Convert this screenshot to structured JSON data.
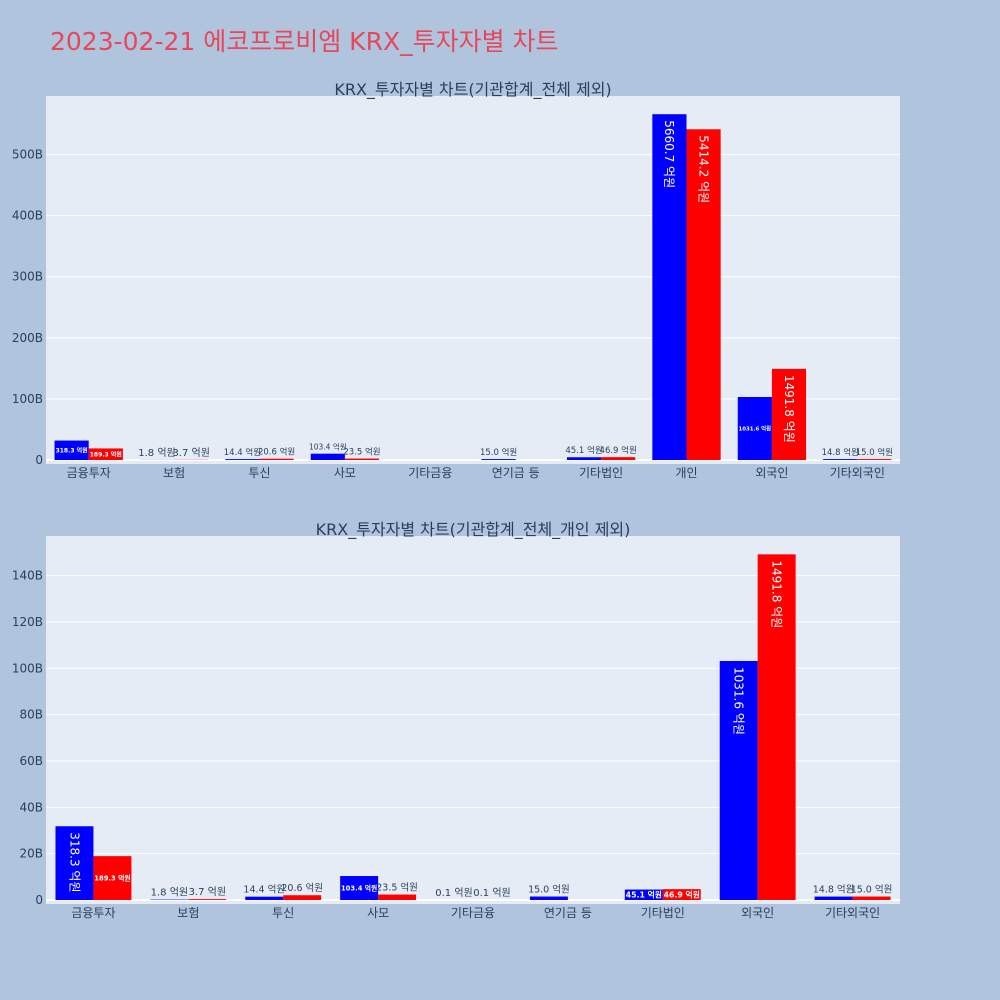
{
  "title": "2023-02-21 에코프로비엠 KRX_투자자별 차트",
  "chart_data": [
    {
      "type": "bar",
      "title": "KRX_투자자별 차트(기관합계_전체 제외)",
      "categories": [
        "금융투자",
        "보험",
        "투신",
        "사모",
        "기타금융",
        "연기금 등",
        "기타법인",
        "개인",
        "외국인",
        "기타외국인"
      ],
      "series": [
        {
          "color": "#0000ff",
          "values": [
            31.83,
            0.18,
            1.44,
            10.34,
            0.01,
            1.5,
            4.51,
            566.07,
            103.16,
            1.48
          ],
          "labels": [
            "318.3 억원",
            "1.8 억원",
            "14.4 억원",
            "103.4 억원",
            "",
            "15.0 억원",
            "45.1 억원",
            "5660.7 억원",
            "1031.6 억원",
            "14.8 억원"
          ]
        },
        {
          "color": "#ff0000",
          "values": [
            18.93,
            0.37,
            2.06,
            2.35,
            0.01,
            0,
            4.69,
            541.42,
            149.18,
            1.5
          ],
          "labels": [
            "189.3 억원",
            "3.7 억원",
            "20.6 억원",
            "23.5 억원",
            "",
            "",
            "46.9 억원",
            "5414.2 억원",
            "1491.8 억원",
            "15.0 억원"
          ]
        }
      ],
      "yticks": [
        0,
        100,
        200,
        300,
        400,
        500
      ],
      "ytick_labels": [
        "0",
        "100B",
        "200B",
        "300B",
        "400B",
        "500B"
      ],
      "ylim": [
        0,
        595.9
      ],
      "grid": true
    },
    {
      "type": "bar",
      "title": "KRX_투자자별 차트(기관합계_전체_개인 제외)",
      "categories": [
        "금융투자",
        "보험",
        "투신",
        "사모",
        "기타금융",
        "연기금 등",
        "기타법인",
        "외국인",
        "기타외국인"
      ],
      "series": [
        {
          "color": "#0000ff",
          "values": [
            31.83,
            0.18,
            1.44,
            10.34,
            0.01,
            1.5,
            4.51,
            103.16,
            1.48
          ],
          "labels": [
            "318.3 억원",
            "1.8 억원",
            "14.4 억원",
            "103.4 억원",
            "0.1 억원",
            "15.0 억원",
            "45.1 억원",
            "1031.6 억원",
            "14.8 억원"
          ]
        },
        {
          "color": "#ff0000",
          "values": [
            18.93,
            0.37,
            2.06,
            2.35,
            0.01,
            0,
            4.69,
            149.18,
            1.5
          ],
          "labels": [
            "189.3 억원",
            "3.7 억원",
            "20.6 억원",
            "23.5 억원",
            "0.1 억원",
            "",
            "46.9 억원",
            "1491.8 억원",
            "15.0 억원"
          ]
        }
      ],
      "yticks": [
        0,
        20,
        40,
        60,
        80,
        100,
        120,
        140
      ],
      "ytick_labels": [
        "0",
        "20B",
        "40B",
        "60B",
        "80B",
        "100B",
        "120B",
        "140B"
      ],
      "ylim": [
        0,
        157.1
      ],
      "grid": true
    }
  ]
}
